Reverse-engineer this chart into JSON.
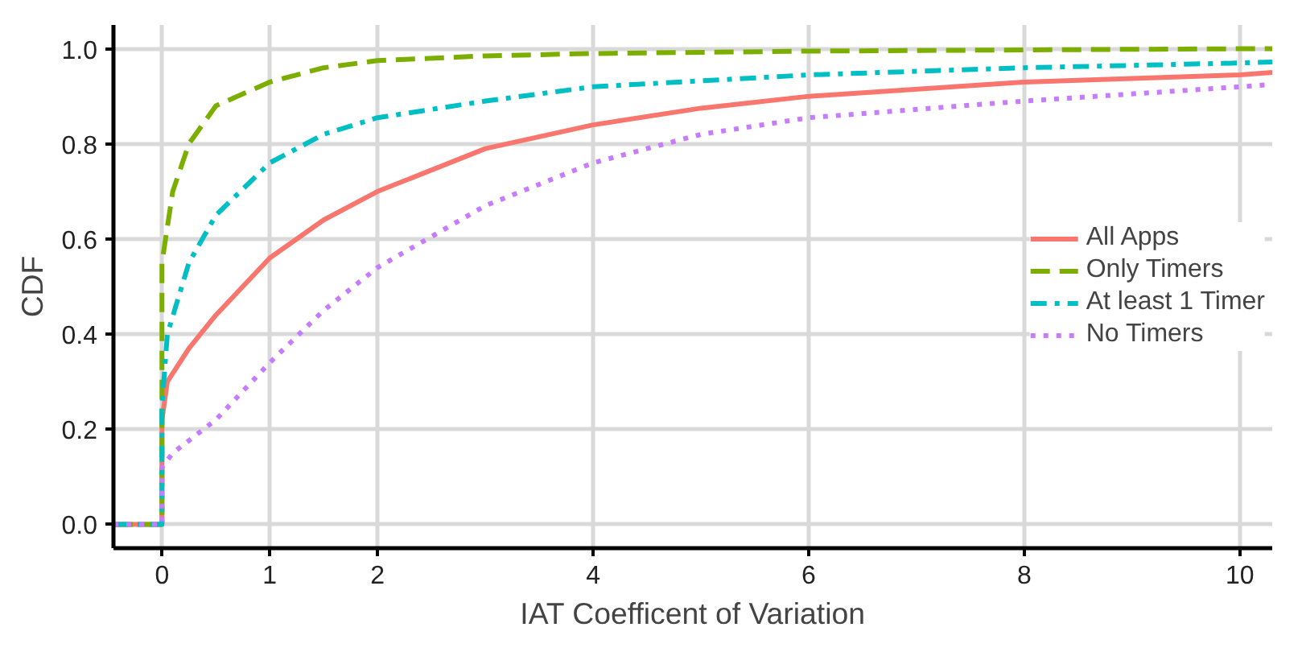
{
  "chart_data": {
    "type": "line",
    "xlabel": "IAT Coefficent of Variation",
    "ylabel": "CDF",
    "xlim": [
      -0.45,
      10.3
    ],
    "ylim": [
      -0.05,
      1.05
    ],
    "xticks": [
      0,
      1,
      2,
      4,
      6,
      8,
      10
    ],
    "yticks": [
      {
        "value": 0,
        "label": "0.0"
      },
      {
        "value": 0.2,
        "label": "0.2"
      },
      {
        "value": 0.4,
        "label": "0.4"
      },
      {
        "value": 0.6,
        "label": "0.6"
      },
      {
        "value": 0.8,
        "label": "0.8"
      },
      {
        "value": 1,
        "label": "1.0"
      }
    ],
    "grid": true,
    "legend": "right",
    "series": [
      {
        "name": "All Apps",
        "color": "#f8766d",
        "line_style": "solid",
        "x": [
          -0.45,
          0,
          0,
          0.05,
          0.25,
          0.5,
          1,
          1.5,
          2,
          3,
          4,
          5,
          6,
          8,
          10,
          10.3
        ],
        "values": [
          0,
          0,
          0.22,
          0.3,
          0.37,
          0.44,
          0.56,
          0.64,
          0.7,
          0.79,
          0.84,
          0.875,
          0.9,
          0.93,
          0.945,
          0.95
        ]
      },
      {
        "name": "Only Timers",
        "color": "#7cae00",
        "line_style": "dashed",
        "x": [
          -0.45,
          0,
          0,
          0.1,
          0.25,
          0.5,
          1,
          1.5,
          2,
          3,
          4,
          6,
          10,
          10.3
        ],
        "values": [
          0,
          0,
          0.55,
          0.7,
          0.8,
          0.88,
          0.93,
          0.96,
          0.975,
          0.985,
          0.99,
          0.995,
          1.0,
          1.0
        ]
      },
      {
        "name": "At least 1 Timer",
        "color": "#00bfc4",
        "line_style": "dashdot",
        "x": [
          -0.45,
          0,
          0,
          0.05,
          0.25,
          0.5,
          1,
          1.5,
          2,
          3,
          4,
          6,
          8,
          10,
          10.3
        ],
        "values": [
          0,
          0,
          0.25,
          0.4,
          0.55,
          0.65,
          0.76,
          0.82,
          0.855,
          0.89,
          0.92,
          0.945,
          0.96,
          0.97,
          0.972
        ]
      },
      {
        "name": "No Timers",
        "color": "#c77cff",
        "line_style": "dotted",
        "x": [
          -0.45,
          0,
          0,
          0.1,
          0.5,
          1,
          1.5,
          2,
          3,
          4,
          5,
          6,
          8,
          10,
          10.3
        ],
        "values": [
          0,
          0,
          0.12,
          0.15,
          0.22,
          0.34,
          0.45,
          0.54,
          0.67,
          0.76,
          0.82,
          0.855,
          0.89,
          0.92,
          0.925
        ]
      }
    ]
  }
}
